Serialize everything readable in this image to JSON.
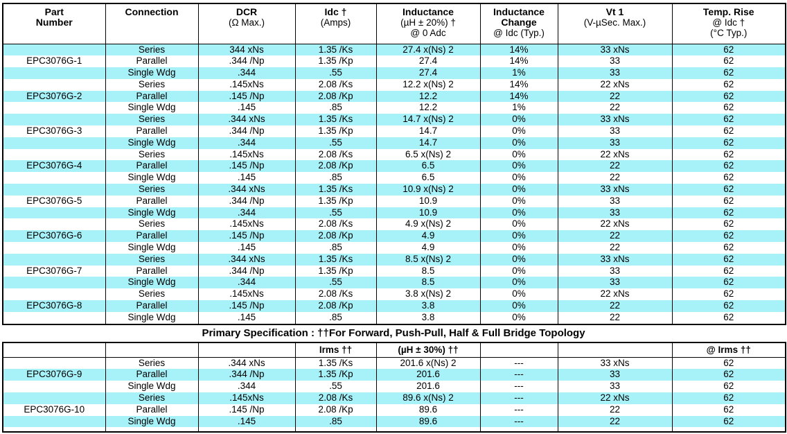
{
  "colors": {
    "stripe_cyan": "#a6f2f8",
    "border": "#000000",
    "background": "#ffffff"
  },
  "header": {
    "columns": [
      {
        "lines": [
          "Part",
          "Number"
        ]
      },
      {
        "lines": [
          "Connection"
        ]
      },
      {
        "lines": [
          "DCR",
          "(Ω Max.)"
        ]
      },
      {
        "lines": [
          "Idc †",
          "(Amps)"
        ]
      },
      {
        "lines": [
          "Inductance",
          "(µH ± 20%) †",
          "@ 0 Adc"
        ]
      },
      {
        "lines": [
          "Inductance",
          "Change",
          "@ Idc (Typ.)"
        ]
      },
      {
        "lines": [
          "Vt 1",
          "(V-µSec. Max.)"
        ]
      },
      {
        "lines": [
          "Temp. Rise",
          "@ Idc †",
          "(°C Typ.)"
        ]
      }
    ]
  },
  "top_table": {
    "part_numbers": [
      "EPC3076G-1",
      "EPC3076G-2",
      "EPC3076G-3",
      "EPC3076G-4",
      "EPC3076G-5",
      "EPC3076G-6",
      "EPC3076G-7",
      "EPC3076G-8"
    ],
    "rows": [
      [
        "Series",
        "344 xNs",
        "1.35 /Ks",
        "27.4 x(Ns) 2",
        "14%",
        "33 xNs",
        "62"
      ],
      [
        "Parallel",
        ".344 /Np",
        "1.35 /Kp",
        "27.4",
        "14%",
        "33",
        "62"
      ],
      [
        "Single Wdg",
        ".344",
        ".55",
        "27.4",
        "1%",
        "33",
        "62"
      ],
      [
        "Series",
        ".145xNs",
        "2.08 /Ks",
        "12.2 x(Ns) 2",
        "14%",
        "22 xNs",
        "62"
      ],
      [
        "Parallel",
        ".145 /Np",
        "2.08 /Kp",
        "12.2",
        "14%",
        "22",
        "62"
      ],
      [
        "Single Wdg",
        ".145",
        ".85",
        "12.2",
        "1%",
        "22",
        "62"
      ],
      [
        "Series",
        ".344 xNs",
        "1.35 /Ks",
        "14.7 x(Ns) 2",
        "0%",
        "33 xNs",
        "62"
      ],
      [
        "Parallel",
        ".344 /Np",
        "1.35 /Kp",
        "14.7",
        "0%",
        "33",
        "62"
      ],
      [
        "Single Wdg",
        ".344",
        ".55",
        "14.7",
        "0%",
        "33",
        "62"
      ],
      [
        "Series",
        ".145xNs",
        "2.08 /Ks",
        "6.5 x(Ns) 2",
        "0%",
        "22 xNs",
        "62"
      ],
      [
        "Parallel",
        ".145 /Np",
        "2.08 /Kp",
        "6.5",
        "0%",
        "22",
        "62"
      ],
      [
        "Single Wdg",
        ".145",
        ".85",
        "6.5",
        "0%",
        "22",
        "62"
      ],
      [
        "Series",
        ".344 xNs",
        "1.35 /Ks",
        "10.9 x(Ns) 2",
        "0%",
        "33 xNs",
        "62"
      ],
      [
        "Parallel",
        ".344 /Np",
        "1.35 /Kp",
        "10.9",
        "0%",
        "33",
        "62"
      ],
      [
        "Single Wdg",
        ".344",
        ".55",
        "10.9",
        "0%",
        "33",
        "62"
      ],
      [
        "Series",
        ".145xNs",
        "2.08 /Ks",
        "4.9 x(Ns) 2",
        "0%",
        "22 xNs",
        "62"
      ],
      [
        "Parallel",
        ".145 /Np",
        "2.08 /Kp",
        "4.9",
        "0%",
        "22",
        "62"
      ],
      [
        "Single Wdg",
        ".145",
        ".85",
        "4.9",
        "0%",
        "22",
        "62"
      ],
      [
        "Series",
        ".344 xNs",
        "1.35 /Ks",
        "8.5 x(Ns) 2",
        "0%",
        "33 xNs",
        "62"
      ],
      [
        "Parallel",
        ".344 /Np",
        "1.35 /Kp",
        "8.5",
        "0%",
        "33",
        "62"
      ],
      [
        "Single Wdg",
        ".344",
        ".55",
        "8.5",
        "0%",
        "33",
        "62"
      ],
      [
        "Series",
        ".145xNs",
        "2.08 /Ks",
        "3.8 x(Ns) 2",
        "0%",
        "22 xNs",
        "62"
      ],
      [
        "Parallel",
        ".145 /Np",
        "2.08 /Kp",
        "3.8",
        "0%",
        "22",
        "62"
      ],
      [
        "Single Wdg",
        ".145",
        ".85",
        "3.8",
        "0%",
        "22",
        "62"
      ]
    ]
  },
  "separator_title": "Primary Specification : ††For Forward, Push-Pull, Half & Full Bridge Topology",
  "bottom_table": {
    "subheader": [
      "",
      "",
      "",
      "Irms ††",
      "(µH ± 30%) ††",
      "",
      "",
      "@ Irms ††"
    ],
    "part_numbers": [
      "EPC3076G-9",
      "EPC3076G-10"
    ],
    "rows": [
      [
        "Series",
        ".344 xNs",
        "1.35 /Ks",
        "201.6 x(Ns) 2",
        "---",
        "33 xNs",
        "62"
      ],
      [
        "Parallel",
        ".344 /Np",
        "1.35 /Kp",
        "201.6",
        "---",
        "33",
        "62"
      ],
      [
        "Single Wdg",
        ".344",
        ".55",
        "201.6",
        "---",
        "33",
        "62"
      ],
      [
        "Series",
        ".145xNs",
        "2.08 /Ks",
        "89.6 x(Ns) 2",
        "---",
        "22 xNs",
        "62"
      ],
      [
        "Parallel",
        ".145 /Np",
        "2.08 /Kp",
        "89.6",
        "---",
        "22",
        "62"
      ],
      [
        "Single Wdg",
        ".145",
        ".85",
        "89.6",
        "---",
        "22",
        "62"
      ]
    ]
  }
}
